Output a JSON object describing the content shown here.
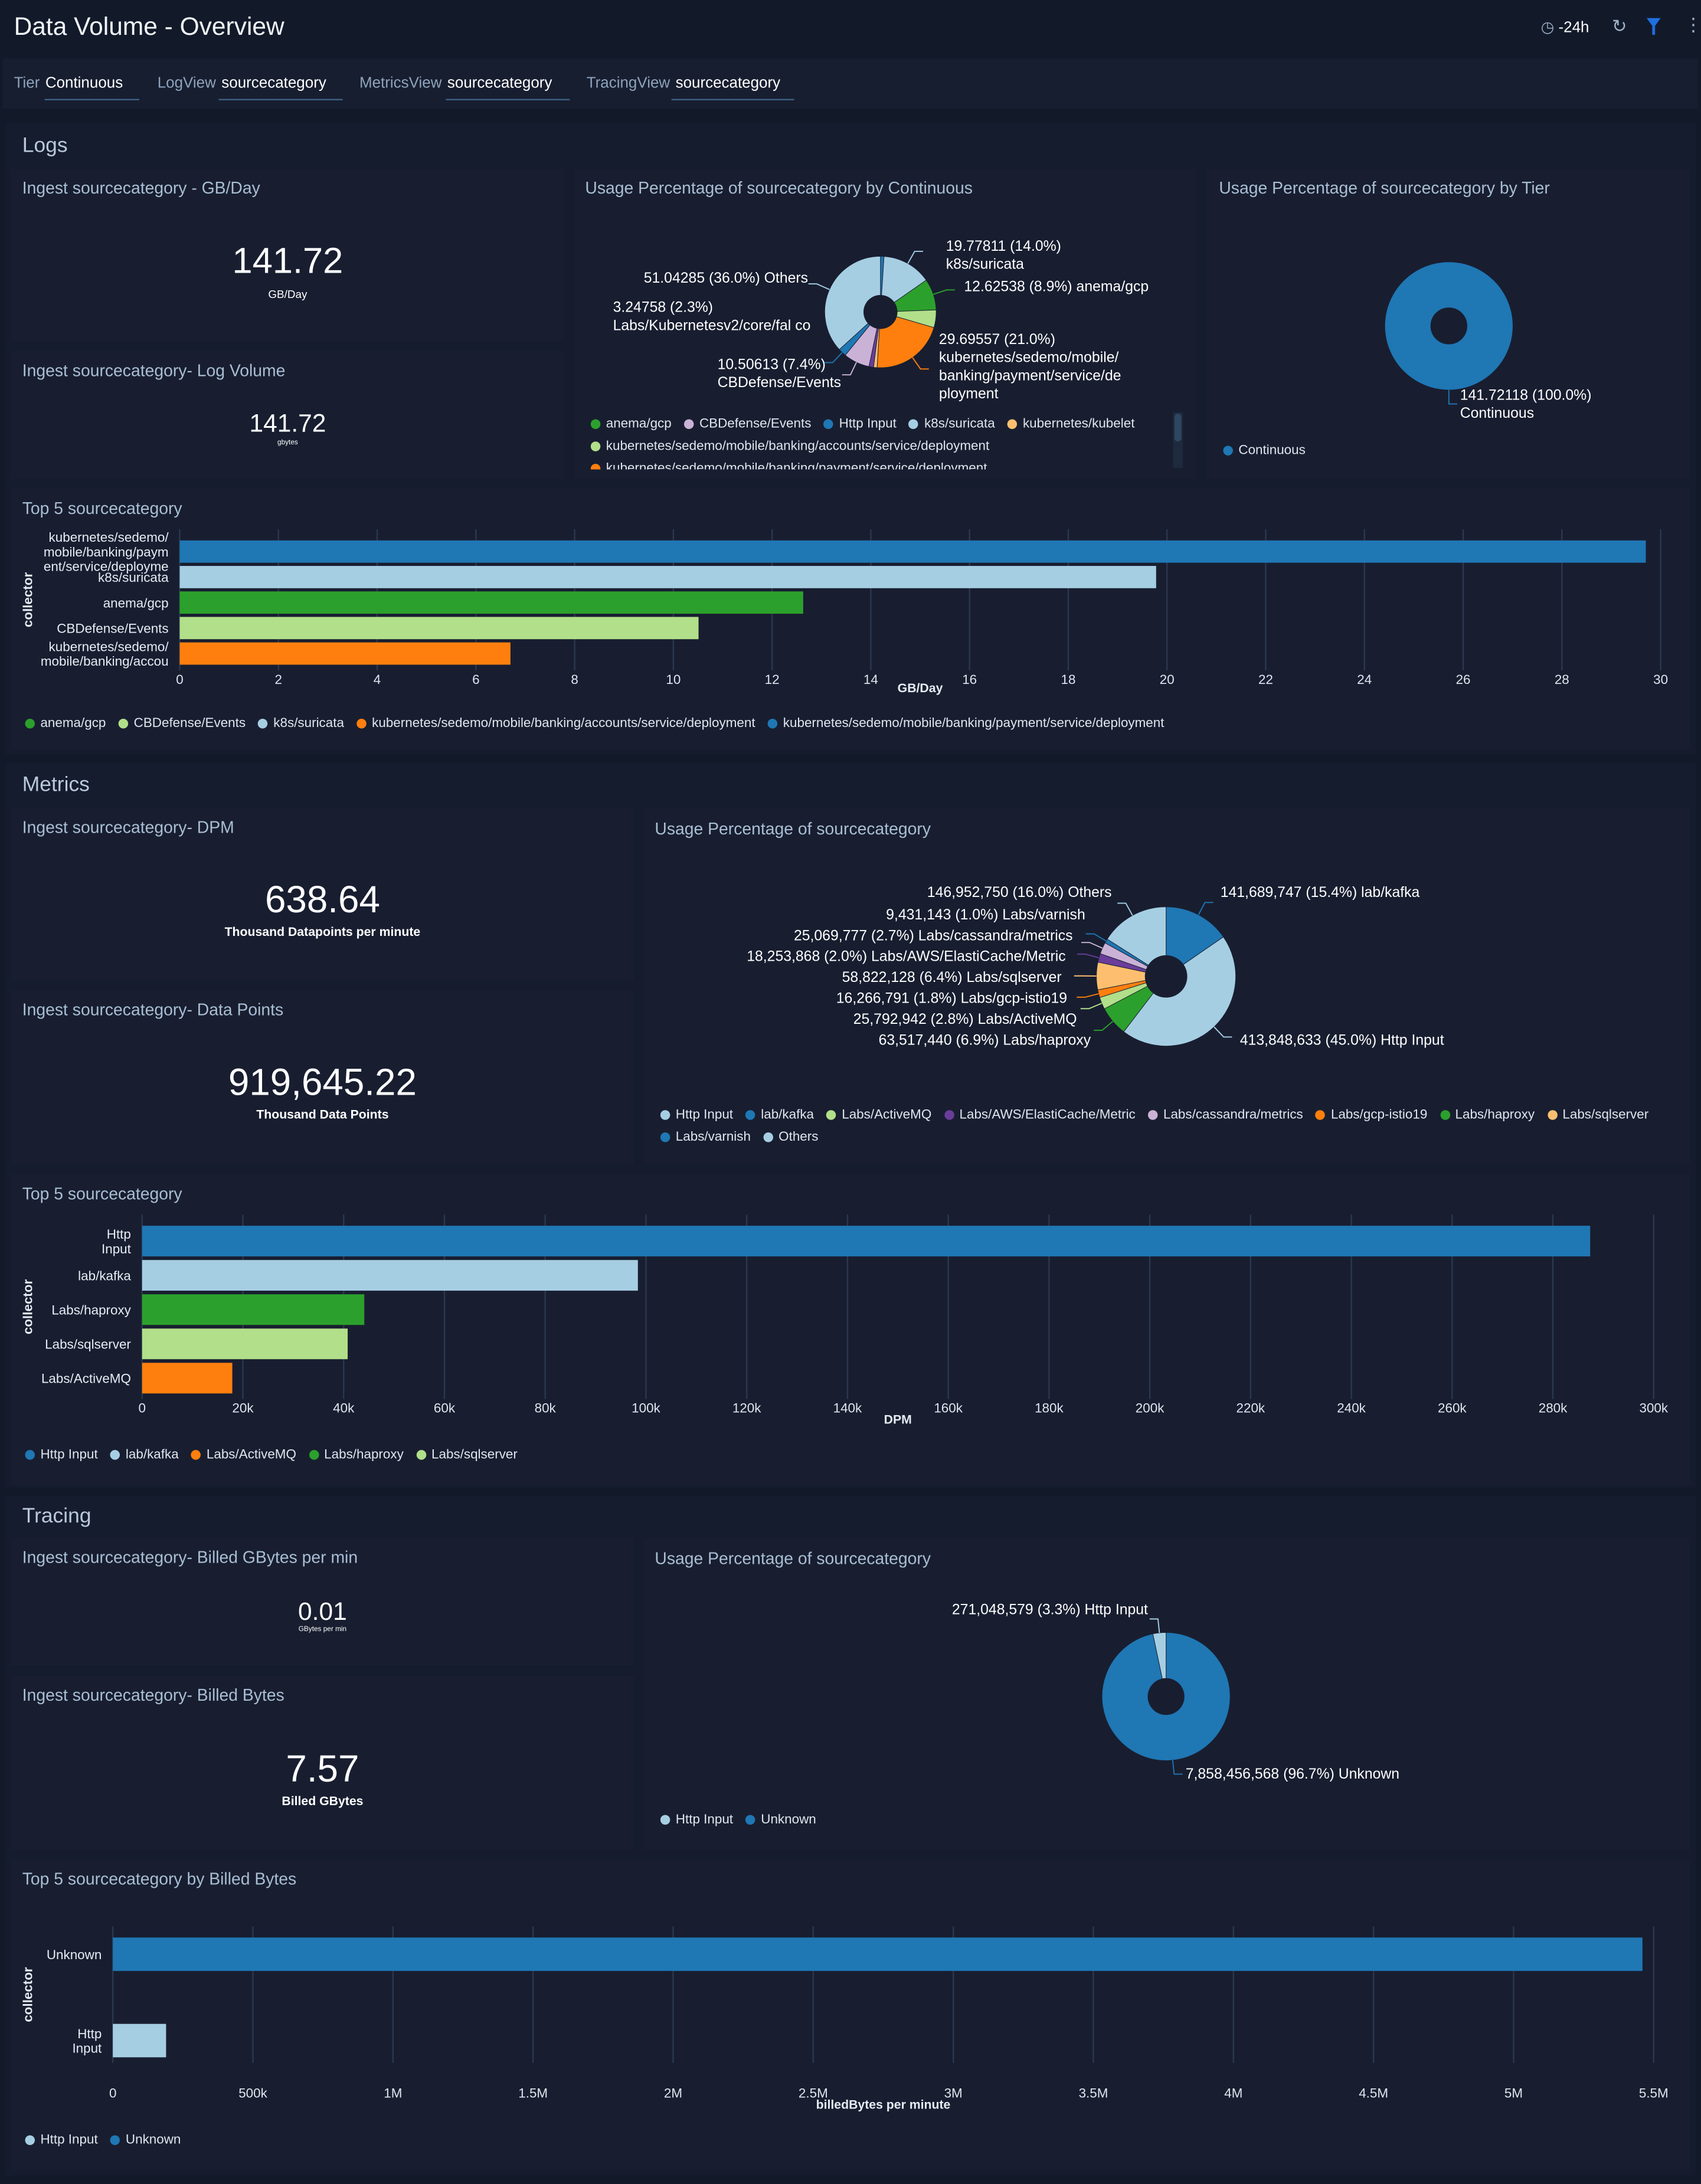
{
  "header": {
    "title": "Data Volume - Overview",
    "time_range": "-24h",
    "icons": [
      "clock-icon",
      "refresh-icon",
      "filter-icon",
      "more-vertical-icon"
    ],
    "accent": "#1f6fe0"
  },
  "filters": [
    {
      "key": "Tier",
      "value": "Continuous"
    },
    {
      "key": "LogView",
      "value": "sourcecategory"
    },
    {
      "key": "MetricsView",
      "value": "sourcecategory"
    },
    {
      "key": "TracingView",
      "value": "sourcecategory"
    }
  ],
  "sections": {
    "logs": "Logs",
    "metrics": "Metrics",
    "tracing": "Tracing"
  },
  "panels": {
    "logs_gb": {
      "title": "Ingest sourcecategory - GB/Day",
      "value": "141.72",
      "unit": "GB/Day"
    },
    "logs_vol": {
      "title": "Ingest sourcecategory- Log Volume",
      "value": "141.72",
      "unit": "gbytes"
    },
    "logs_pie": {
      "title": "Usage Percentage of sourcecategory by Continuous"
    },
    "logs_tier": {
      "title": "Usage Percentage of sourcecategory by Tier"
    },
    "logs_top": {
      "title": "Top 5 sourcecategory"
    },
    "m_dpm": {
      "title": "Ingest sourcecategory- DPM",
      "value": "638.64",
      "unit": "Thousand Datapoints per minute"
    },
    "m_dp": {
      "title": "Ingest sourcecategory- Data Points",
      "value": "919,645.22",
      "unit": "Thousand Data Points"
    },
    "m_pie": {
      "title": "Usage Percentage of sourcecategory"
    },
    "m_top": {
      "title": "Top 5 sourcecategory"
    },
    "t_gb": {
      "title": "Ingest sourcecategory- Billed GBytes per min",
      "value": "0.01",
      "unit": "GBytes per min"
    },
    "t_bytes": {
      "title": "Ingest sourcecategory- Billed Bytes",
      "value": "7.57",
      "unit": "Billed GBytes"
    },
    "t_pie": {
      "title": "Usage Percentage of sourcecategory"
    },
    "t_top": {
      "title": "Top 5 sourcecategory by Billed Bytes"
    }
  },
  "chart_data": [
    {
      "id": "logs_pie",
      "type": "pie",
      "donut": true,
      "slices": [
        {
          "name": "Http Input",
          "pct": 1.0,
          "color": "#1f77b4"
        },
        {
          "name": "k8s/suricata",
          "pct": 14.0,
          "color": "#a6cee3",
          "label": "19.77811 (14.0%) k8s/suricata"
        },
        {
          "name": "anema/gcp",
          "pct": 8.9,
          "color": "#2ca02c",
          "label": "12.62538 (8.9%) anema/gcp"
        },
        {
          "name": "kubernetes/sedemo/mobile/banking/accounts/service/deployment",
          "pct": 5.0,
          "color": "#b2df8a"
        },
        {
          "name": "kubernetes/sedemo/mobile/banking/payment/service/deployment",
          "pct": 21.0,
          "color": "#ff7f0e",
          "label": "29.69557 (21.0%) kubernetes/sedemo/mobile/ banking/payment/service/de ployment"
        },
        {
          "name": "kubernetes/kubelet",
          "pct": 1.0,
          "color": "#fdbf6f"
        },
        {
          "name": "",
          "pct": 1.3,
          "color": "#6a3d9a"
        },
        {
          "name": "CBDefense/Events",
          "pct": 7.4,
          "color": "#cab2d6",
          "label": "10.50613 (7.4%) CBDefense/Events"
        },
        {
          "name": "Labs/Kubernetesv2/core/falco",
          "pct": 2.3,
          "color": "#1f77b4",
          "label": "3.24758 (2.3%) Labs/Kubernetesv2/core/fal co"
        },
        {
          "name": "Others",
          "pct": 36.0,
          "color": "#a6cee3",
          "label": "51.04285 (36.0%) Others"
        }
      ],
      "legend": [
        {
          "name": "anema/gcp",
          "color": "#2ca02c"
        },
        {
          "name": "CBDefense/Events",
          "color": "#cab2d6"
        },
        {
          "name": "Http Input",
          "color": "#1f77b4"
        },
        {
          "name": "k8s/suricata",
          "color": "#a6cee3"
        },
        {
          "name": "kubernetes/kubelet",
          "color": "#fdbf6f"
        },
        {
          "name": "kubernetes/sedemo/mobile/banking/accounts/service/deployment",
          "color": "#b2df8a"
        },
        {
          "name": "kubernetes/sedemo/mobile/banking/payment/service/deployment",
          "color": "#ff7f0e"
        }
      ]
    },
    {
      "id": "logs_tier",
      "type": "pie",
      "donut": true,
      "slices": [
        {
          "name": "Continuous",
          "pct": 100.0,
          "color": "#1f77b4",
          "label": "141.72118 (100.0%) Continuous"
        }
      ],
      "legend": [
        {
          "name": "Continuous",
          "color": "#1f77b4"
        }
      ]
    },
    {
      "id": "logs_top",
      "type": "bar",
      "orientation": "horizontal",
      "xlabel": "GB/Day",
      "ylabel": "collector",
      "xlim": [
        0,
        30
      ],
      "ticks": [
        "0",
        "2",
        "4",
        "6",
        "8",
        "10",
        "12",
        "14",
        "16",
        "18",
        "20",
        "22",
        "24",
        "26",
        "28",
        "30"
      ],
      "tick_values": [
        0,
        2,
        4,
        6,
        8,
        10,
        12,
        14,
        16,
        18,
        20,
        22,
        24,
        26,
        28,
        30
      ],
      "categories": [
        "kubernetes/sedemo/ mobile/banking/paym ent/service/deployme",
        "k8s/suricata",
        "anema/gcp",
        "CBDefense/Events",
        "kubernetes/sedemo/ mobile/banking/accou"
      ],
      "values": [
        29.7,
        19.78,
        12.63,
        10.51,
        6.7
      ],
      "colors": [
        "#1f77b4",
        "#a6cee3",
        "#2ca02c",
        "#b2df8a",
        "#ff7f0e"
      ],
      "legend": [
        {
          "name": "anema/gcp",
          "color": "#2ca02c"
        },
        {
          "name": "CBDefense/Events",
          "color": "#b2df8a"
        },
        {
          "name": "k8s/suricata",
          "color": "#a6cee3"
        },
        {
          "name": "kubernetes/sedemo/mobile/banking/accounts/service/deployment",
          "color": "#ff7f0e"
        },
        {
          "name": "kubernetes/sedemo/mobile/banking/payment/service/deployment",
          "color": "#1f77b4"
        }
      ]
    },
    {
      "id": "m_pie",
      "type": "pie",
      "donut": true,
      "slices": [
        {
          "name": "lab/kafka",
          "pct": 15.4,
          "color": "#1f77b4",
          "label": "141,689,747 (15.4%) lab/kafka"
        },
        {
          "name": "Http Input",
          "pct": 45.0,
          "color": "#a6cee3",
          "label": "413,848,633 (45.0%) Http Input"
        },
        {
          "name": "Labs/haproxy",
          "pct": 6.9,
          "color": "#2ca02c",
          "label": "63,517,440 (6.9%) Labs/haproxy"
        },
        {
          "name": "Labs/ActiveMQ",
          "pct": 2.8,
          "color": "#b2df8a",
          "label": "25,792,942 (2.8%) Labs/ActiveMQ"
        },
        {
          "name": "Labs/gcp-istio19",
          "pct": 1.8,
          "color": "#ff7f0e",
          "label": "16,266,791 (1.8%) Labs/gcp-istio19"
        },
        {
          "name": "Labs/sqlserver",
          "pct": 6.4,
          "color": "#fdbf6f",
          "label": "58,822,128 (6.4%) Labs/sqlserver"
        },
        {
          "name": "Labs/AWS/ElastiCache/Metric",
          "pct": 2.0,
          "color": "#6a3d9a",
          "label": "18,253,868 (2.0%) Labs/AWS/ElastiCache/Metric"
        },
        {
          "name": "Labs/cassandra/metrics",
          "pct": 2.7,
          "color": "#cab2d6",
          "label": "25,069,777 (2.7%) Labs/cassandra/metrics"
        },
        {
          "name": "Labs/varnish",
          "pct": 1.0,
          "color": "#1f77b4",
          "label": "9,431,143 (1.0%) Labs/varnish"
        },
        {
          "name": "Others",
          "pct": 16.0,
          "color": "#a6cee3",
          "label": "146,952,750 (16.0%) Others"
        }
      ],
      "legend": [
        {
          "name": "Http Input",
          "color": "#a6cee3"
        },
        {
          "name": "lab/kafka",
          "color": "#1f77b4"
        },
        {
          "name": "Labs/ActiveMQ",
          "color": "#b2df8a"
        },
        {
          "name": "Labs/AWS/ElastiCache/Metric",
          "color": "#6a3d9a"
        },
        {
          "name": "Labs/cassandra/metrics",
          "color": "#cab2d6"
        },
        {
          "name": "Labs/gcp-istio19",
          "color": "#ff7f0e"
        },
        {
          "name": "Labs/haproxy",
          "color": "#2ca02c"
        },
        {
          "name": "Labs/sqlserver",
          "color": "#fdbf6f"
        },
        {
          "name": "Labs/varnish",
          "color": "#1f77b4"
        },
        {
          "name": "Others",
          "color": "#a6cee3"
        }
      ]
    },
    {
      "id": "m_top",
      "type": "bar",
      "orientation": "horizontal",
      "xlabel": "DPM",
      "ylabel": "collector",
      "xlim": [
        0,
        300000
      ],
      "ticks": [
        "0",
        "20k",
        "40k",
        "60k",
        "80k",
        "100k",
        "120k",
        "140k",
        "160k",
        "180k",
        "200k",
        "220k",
        "240k",
        "260k",
        "280k",
        "300k"
      ],
      "tick_values": [
        0,
        20000,
        40000,
        60000,
        80000,
        100000,
        120000,
        140000,
        160000,
        180000,
        200000,
        220000,
        240000,
        260000,
        280000,
        300000
      ],
      "categories": [
        "Http Input",
        "lab/kafka",
        "Labs/haproxy",
        "Labs/sqlserver",
        "Labs/ActiveMQ"
      ],
      "values": [
        287400,
        98400,
        44100,
        40800,
        17900
      ],
      "colors": [
        "#1f77b4",
        "#a6cee3",
        "#2ca02c",
        "#b2df8a",
        "#ff7f0e"
      ],
      "legend": [
        {
          "name": "Http Input",
          "color": "#1f77b4"
        },
        {
          "name": "lab/kafka",
          "color": "#a6cee3"
        },
        {
          "name": "Labs/ActiveMQ",
          "color": "#ff7f0e"
        },
        {
          "name": "Labs/haproxy",
          "color": "#2ca02c"
        },
        {
          "name": "Labs/sqlserver",
          "color": "#b2df8a"
        }
      ]
    },
    {
      "id": "t_pie",
      "type": "pie",
      "donut": true,
      "slices": [
        {
          "name": "Unknown",
          "pct": 96.7,
          "color": "#1f77b4",
          "label": "7,858,456,568 (96.7%) Unknown"
        },
        {
          "name": "Http Input",
          "pct": 3.3,
          "color": "#a6cee3",
          "label": "271,048,579 (3.3%) Http Input"
        }
      ],
      "legend": [
        {
          "name": "Http Input",
          "color": "#a6cee3"
        },
        {
          "name": "Unknown",
          "color": "#1f77b4"
        }
      ]
    },
    {
      "id": "t_top",
      "type": "bar",
      "orientation": "horizontal",
      "xlabel": "billedBytes per minute",
      "ylabel": "collector",
      "xlim": [
        0,
        5500000
      ],
      "ticks": [
        "0",
        "500k",
        "1M",
        "1.5M",
        "2M",
        "2.5M",
        "3M",
        "3.5M",
        "4M",
        "4.5M",
        "5M",
        "5.5M"
      ],
      "tick_values": [
        0,
        500000,
        1000000,
        1500000,
        2000000,
        2500000,
        3000000,
        3500000,
        4000000,
        4500000,
        5000000,
        5500000
      ],
      "categories": [
        "Unknown",
        "Http Input"
      ],
      "values": [
        5460000,
        190000
      ],
      "colors": [
        "#1f77b4",
        "#a6cee3"
      ],
      "legend": [
        {
          "name": "Http Input",
          "color": "#a6cee3"
        },
        {
          "name": "Unknown",
          "color": "#1f77b4"
        }
      ]
    }
  ]
}
